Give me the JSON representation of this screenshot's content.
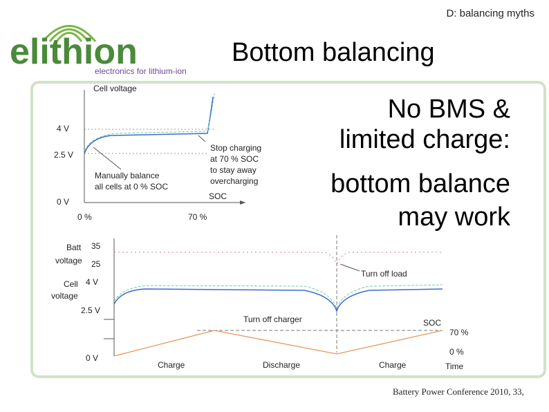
{
  "header": {
    "section": "D: balancing myths",
    "title": "Bottom balancing"
  },
  "logo": {
    "name": "elithion",
    "tagline": "electronics for lithium-ion"
  },
  "callout": [
    "No BMS &",
    "limited charge:",
    "bottom balance",
    "may work"
  ],
  "top_diagram": {
    "y_label": "Cell voltage",
    "y_levels": [
      "4 V",
      "2.5 V",
      "0 V"
    ],
    "x_label": "SOC",
    "x_levels": [
      "0 %",
      "70 %"
    ],
    "note_left": [
      "Manually balance",
      "all cells at 0 % SOC"
    ],
    "note_right": [
      "Stop charging",
      "at 70 % SOC",
      "to stay away",
      "overcharging"
    ]
  },
  "bottom_diagram": {
    "batt_label": [
      "Batt",
      "voltage"
    ],
    "batt_levels": [
      "35",
      "25"
    ],
    "cell_label": [
      "Cell",
      "voltage"
    ],
    "cell_levels": [
      "4 V",
      "2.5 V",
      "0 V"
    ],
    "turn_off_load": "Turn off load",
    "turn_off_charger": "Turn off charger",
    "soc_label": "SOC",
    "soc_levels": [
      "70 %",
      "0 %"
    ],
    "time_label": "Time",
    "phases": [
      "Charge",
      "Discharge",
      "Charge"
    ]
  },
  "footer": "Battery Power Conference 2010, 33,"
}
